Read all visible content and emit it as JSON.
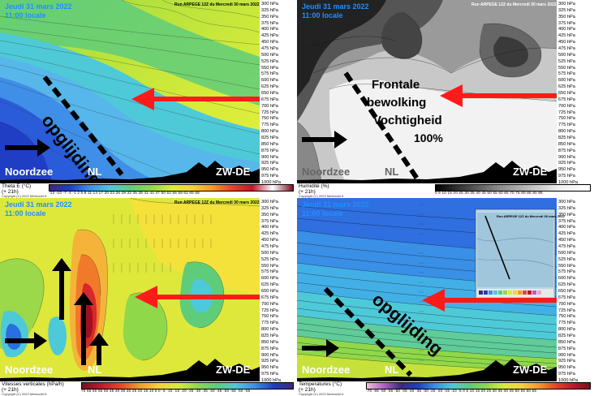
{
  "pressure_levels": [
    "300 hPa",
    "325 hPa",
    "350 hPa",
    "375 hPa",
    "400 hPa",
    "425 hPa",
    "450 hPa",
    "475 hPa",
    "500 hPa",
    "525 hPa",
    "550 hPa",
    "575 hPa",
    "600 hPa",
    "625 hPa",
    "650 hPa",
    "675 hPa",
    "700 hPa",
    "725 hPa",
    "750 hPa",
    "775 hPa",
    "800 hPa",
    "825 hPa",
    "850 hPa",
    "875 hPa",
    "900 hPa",
    "925 hPa",
    "950 hPa",
    "975 hPa",
    "1000 hPa"
  ],
  "common": {
    "date": "Jeudi 31 mars 2022",
    "time": "11:00 locale",
    "run": "Run ARPEGE 12Z du Mercredi 30 mars 2022",
    "lead": "(+ 21h)",
    "copyright": "Copyright (C) 2022 Meteociel.fr",
    "loc_left": "Noordzee",
    "loc_mid": "NL",
    "loc_right": "ZW-DE"
  },
  "panels": {
    "theta": {
      "variable": "Theta E (°C)",
      "colorbar": "-13 -10 -7 -4 -1 2 5 8 11 14 17 20 23 26 29 32 35 38 41 44 47 50 53 56 59 62 65 68",
      "annotation": "opglijding"
    },
    "humidity": {
      "variable": "Humidité (%)",
      "colorbar": "0 5 10 15 20 25 30 35 40 45 50 55 60 65 70 75 80 85 90 95",
      "annotation_lines": [
        "Frontale",
        "bewolking",
        "Vochtigheid",
        "100%"
      ]
    },
    "vertical": {
      "variable": "Vitesses verticales (hPa/h)",
      "colorbar": "70 65 60 55 50 45 40 35 30 25 20 15 10 5 0 -5 -10 -15 -20 -25 -30 -35 -40 -45 -50 -55 -60 -65"
    },
    "temperature": {
      "variable": "Temperatures (°C)",
      "colorbar": "-70 -65 -60 -55 -50 -45 -40 -35 -30 -25 -20 -15 -10 -5 0 5 10 15 20 25 30 35 40 45 50 55 60 65",
      "annotation": "opglijding"
    }
  },
  "colors": {
    "arrow_red": "#ff1a1a",
    "arrow_black": "#000000",
    "title_blue": "#1e90ff"
  }
}
